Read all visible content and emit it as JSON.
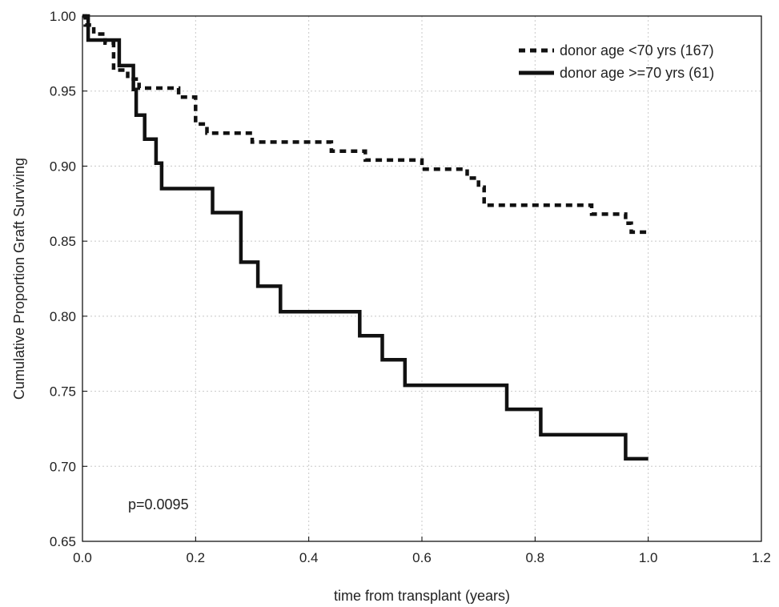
{
  "chart_data": {
    "type": "line",
    "step": true,
    "xlabel": "time from transplant (years)",
    "ylabel": "Cumulative Proportion Graft Surviving",
    "xlim": [
      0.0,
      1.2
    ],
    "ylim": [
      0.65,
      1.0
    ],
    "x_ticks": [
      "0.0",
      "0.2",
      "0.4",
      "0.6",
      "0.8",
      "1.0",
      "1.2"
    ],
    "y_ticks": [
      "0.65",
      "0.70",
      "0.75",
      "0.80",
      "0.85",
      "0.90",
      "0.95",
      "1.00"
    ],
    "grid": true,
    "legend_position": "top-right",
    "annotation": "p=0.0095",
    "series": [
      {
        "name": "donor age <70 yrs (167)",
        "style": "dashed",
        "points": [
          [
            0.0,
            1.0
          ],
          [
            0.005,
            0.994
          ],
          [
            0.02,
            0.988
          ],
          [
            0.04,
            0.982
          ],
          [
            0.055,
            0.964
          ],
          [
            0.08,
            0.958
          ],
          [
            0.1,
            0.952
          ],
          [
            0.17,
            0.946
          ],
          [
            0.2,
            0.928
          ],
          [
            0.22,
            0.922
          ],
          [
            0.3,
            0.916
          ],
          [
            0.44,
            0.91
          ],
          [
            0.5,
            0.904
          ],
          [
            0.6,
            0.898
          ],
          [
            0.68,
            0.892
          ],
          [
            0.7,
            0.886
          ],
          [
            0.71,
            0.874
          ],
          [
            0.9,
            0.868
          ],
          [
            0.96,
            0.862
          ],
          [
            0.97,
            0.856
          ],
          [
            1.0,
            0.856
          ]
        ]
      },
      {
        "name": "donor age >=70 yrs (61)",
        "style": "solid",
        "points": [
          [
            0.0,
            1.0
          ],
          [
            0.01,
            0.984
          ],
          [
            0.065,
            0.967
          ],
          [
            0.09,
            0.951
          ],
          [
            0.095,
            0.934
          ],
          [
            0.11,
            0.918
          ],
          [
            0.13,
            0.902
          ],
          [
            0.14,
            0.885
          ],
          [
            0.23,
            0.869
          ],
          [
            0.28,
            0.836
          ],
          [
            0.31,
            0.82
          ],
          [
            0.35,
            0.803
          ],
          [
            0.49,
            0.787
          ],
          [
            0.53,
            0.771
          ],
          [
            0.57,
            0.754
          ],
          [
            0.75,
            0.738
          ],
          [
            0.81,
            0.721
          ],
          [
            0.96,
            0.705
          ],
          [
            1.0,
            0.705
          ]
        ]
      }
    ]
  }
}
